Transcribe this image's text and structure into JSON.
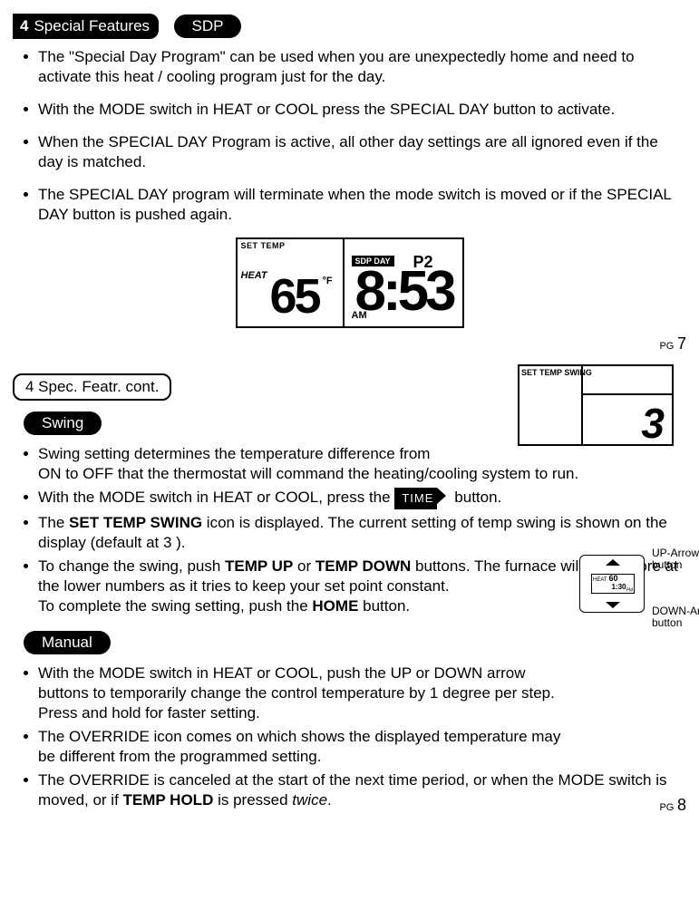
{
  "section1": {
    "num": "4",
    "title": "Special Features"
  },
  "sdp": {
    "label": "SDP",
    "b1": "The \"Special Day Program\" can be used when you are unexpectedly home and need to activate this heat / cooling program just for the day.",
    "b2": "With the MODE switch in HEAT or COOL press the SPECIAL DAY button to activate.",
    "b3": "When the SPECIAL DAY Program is active, all other day settings are all ignored even if the day is matched.",
    "b4": "The SPECIAL DAY program will terminate when the mode switch is moved or if the SPECIAL DAY button is pushed again."
  },
  "lcd1": {
    "settemp": "SET TEMP",
    "heat": "HEAT",
    "temp": "65",
    "degf": "°F",
    "sdpday": "SDP DAY",
    "p2": "P2",
    "time": "8:53",
    "am": "AM"
  },
  "pg7": {
    "pg": "PG",
    "n": "7"
  },
  "section2": {
    "title": "4  Spec. Featr. cont."
  },
  "swing": {
    "label": "Swing",
    "b1a": "Swing setting determines the temperature difference from",
    "b1b": "ON to OFF that the thermostat will command the heating/cooling system to run.",
    "b2a": "With the MODE switch in HEAT or COOL, press the ",
    "b2time": "TIME",
    "b2b": " button.",
    "b3a": "The ",
    "b3bold": "SET TEMP SWING",
    "b3b": " icon is displayed. The current setting of temp swing is shown on the display (default at 3 ).",
    "b4a": "To change the swing, push ",
    "b4bold1": "TEMP UP",
    "b4mid": " or ",
    "b4bold2": "TEMP DOWN",
    "b4b": " buttons. The furnace will cycle more at the lower numbers as it tries to keep your set point constant.",
    "b4c": "To complete the swing setting, push the ",
    "b4bold3": "HOME",
    "b4d": " button."
  },
  "lcd2": {
    "label": "SET TEMP SWING",
    "val": "3"
  },
  "manual": {
    "label": "Manual",
    "b1": "With the MODE switch in HEAT or COOL, push the UP or DOWN arrow buttons to temporarily change the control temperature by 1 degree per step. Press and hold for faster setting.",
    "b2": "The OVERRIDE icon comes on which shows the displayed temperature may be different from the programmed setting.",
    "b3a": "The OVERRIDE is canceled at the start of the next time period, or when the MODE switch is moved, or if ",
    "b3bold": "TEMP HOLD",
    "b3b": " is pressed ",
    "b3i": "twice",
    "b3c": "."
  },
  "diagram": {
    "up": "UP-Arrow\nbutton",
    "down": "DOWN-Arrow\nbutton",
    "screen1": "60",
    "screen2": "1:30"
  },
  "pg8": {
    "pg": "PG",
    "n": "8"
  }
}
